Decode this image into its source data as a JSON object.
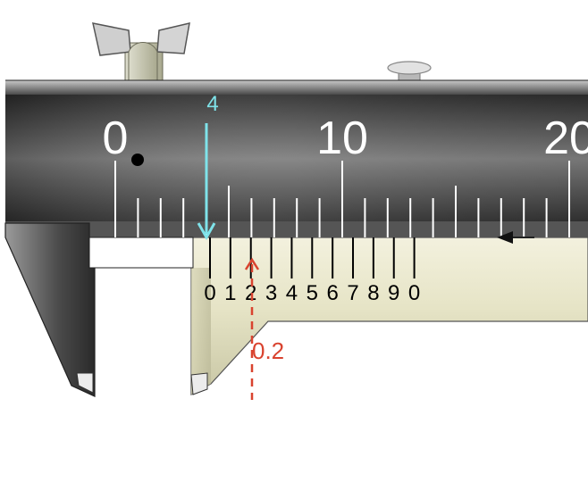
{
  "main_scale": {
    "labels": [
      "0",
      "10",
      "20"
    ],
    "major_every_mm": 10,
    "medium_every_mm": 5
  },
  "vernier_scale": {
    "labels": [
      "0",
      "1",
      "2",
      "3",
      "4",
      "5",
      "6",
      "7",
      "8",
      "9",
      "0"
    ],
    "divisions": 10
  },
  "annotations": {
    "main_reading": "4",
    "vernier_reading": "0.2"
  },
  "colors": {
    "beam_dark": "#3e3e3e",
    "beam_light": "#8a8a8a",
    "slider_fill": "#e7e5c9",
    "slider_shadow": "#c7c5a6",
    "main_arrow": "#7fe3ea",
    "vernier_arrow": "#d9432f"
  },
  "icons": {
    "lock_screw": "wing-screw-icon",
    "pin": "depth-pin-icon",
    "direction": "left-arrow-icon"
  }
}
